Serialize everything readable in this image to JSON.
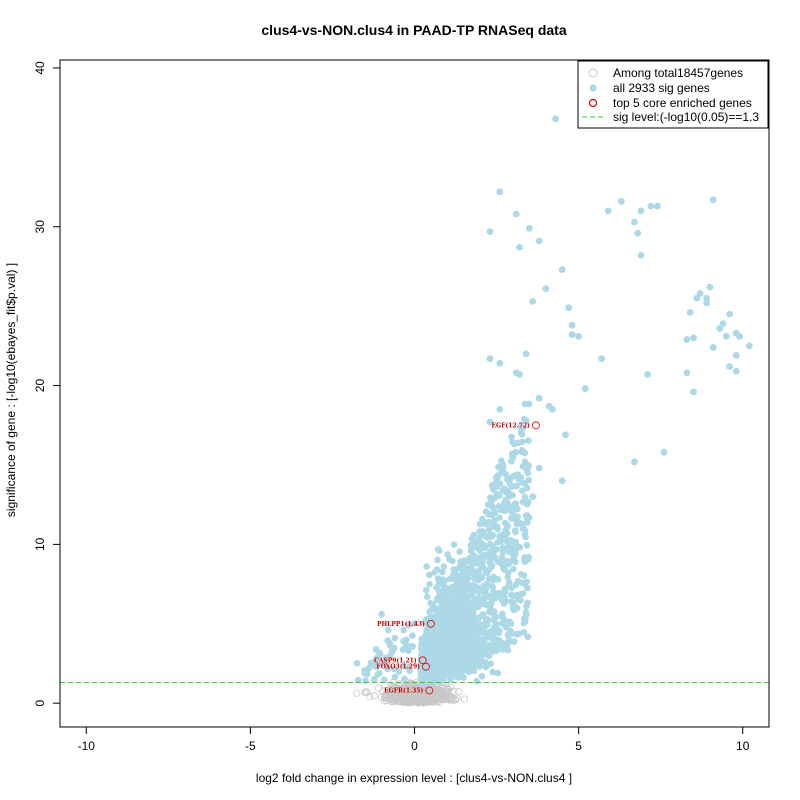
{
  "chart_data": {
    "type": "scatter",
    "title": "clus4-vs-NON.clus4 in PAAD-TP RNASeq data",
    "xlabel": "log2 fold change in expression level : [clus4-vs-NON.clus4 ]",
    "ylabel": "significance of gene : [-log10(ebayes_fit$p.val) ]",
    "xlim": [
      -10.8,
      10.8
    ],
    "ylim": [
      -1.5,
      40.5
    ],
    "x_ticks": [
      -10,
      -5,
      0,
      5,
      10
    ],
    "y_ticks": [
      0,
      10,
      20,
      30,
      40
    ],
    "x_tick_labels": [
      "-10",
      "-5",
      "0",
      "5",
      "10"
    ],
    "y_tick_labels": [
      "0",
      "10",
      "20",
      "30",
      "40"
    ],
    "sig_level": 1.3,
    "colors": {
      "background_genes": "#c8c8c8",
      "sig_genes": "#add8e6",
      "core_genes": "#e00000",
      "sig_line": "#33cc33"
    },
    "legend": {
      "placement": "top-right",
      "entries": [
        {
          "label": "Among total18457genes",
          "kind": "open-grey"
        },
        {
          "label": "all 2933 sig genes",
          "kind": "filled-blue"
        },
        {
          "label": "top 5 core enriched genes",
          "kind": "open-red"
        },
        {
          "label": "sig level:(-log10(0.05)==1.3",
          "kind": "dashed-green"
        }
      ]
    },
    "core_genes": [
      {
        "label": "EGF(12.72)",
        "x": 3.7,
        "y": 17.5
      },
      {
        "label": "PHLPP1(1.43)",
        "x": 0.5,
        "y": 5.0
      },
      {
        "label": "CASP9(1.21)",
        "x": 0.25,
        "y": 2.7
      },
      {
        "label": "FOXO3(1.29)",
        "x": 0.35,
        "y": 2.3
      },
      {
        "label": "EGFR(1.35)",
        "x": 0.45,
        "y": 0.8
      }
    ],
    "outlier_sig_genes": [
      [
        4.3,
        36.8
      ],
      [
        2.6,
        32.2
      ],
      [
        3.1,
        30.8
      ],
      [
        6.3,
        31.6
      ],
      [
        6.9,
        31.0
      ],
      [
        7.2,
        31.3
      ],
      [
        7.4,
        31.3
      ],
      [
        9.1,
        31.7
      ],
      [
        5.9,
        31.0
      ],
      [
        2.3,
        29.7
      ],
      [
        3.5,
        29.9
      ],
      [
        3.8,
        29.1
      ],
      [
        3.2,
        28.7
      ],
      [
        6.7,
        30.3
      ],
      [
        6.8,
        29.6
      ],
      [
        6.9,
        28.2
      ],
      [
        4.5,
        27.3
      ],
      [
        4.0,
        26.1
      ],
      [
        3.6,
        25.3
      ],
      [
        4.7,
        24.9
      ],
      [
        4.8,
        23.8
      ],
      [
        4.8,
        23.2
      ],
      [
        5.0,
        23.1
      ],
      [
        5.7,
        21.7
      ],
      [
        2.3,
        21.7
      ],
      [
        2.6,
        21.4
      ],
      [
        3.1,
        20.8
      ],
      [
        3.4,
        22.0
      ],
      [
        3.2,
        20.7
      ],
      [
        5.2,
        19.8
      ],
      [
        7.1,
        20.7
      ],
      [
        8.3,
        22.9
      ],
      [
        8.5,
        23.0
      ],
      [
        8.4,
        24.6
      ],
      [
        8.6,
        25.5
      ],
      [
        8.7,
        25.8
      ],
      [
        8.9,
        25.2
      ],
      [
        9.0,
        26.2
      ],
      [
        9.1,
        22.4
      ],
      [
        9.3,
        23.6
      ],
      [
        9.4,
        23.9
      ],
      [
        9.5,
        23.1
      ],
      [
        9.6,
        24.5
      ],
      [
        9.8,
        23.3
      ],
      [
        9.9,
        23.1
      ],
      [
        9.6,
        21.2
      ],
      [
        9.8,
        20.9
      ],
      [
        9.8,
        21.9
      ],
      [
        10.2,
        22.5
      ],
      [
        8.3,
        20.8
      ],
      [
        8.5,
        19.6
      ],
      [
        8.9,
        25.5
      ],
      [
        7.6,
        15.8
      ],
      [
        6.7,
        15.2
      ],
      [
        4.6,
        16.9
      ],
      [
        4.2,
        18.5
      ],
      [
        4.1,
        18.7
      ],
      [
        3.8,
        19.2
      ],
      [
        2.6,
        18.5
      ],
      [
        2.3,
        17.7
      ],
      [
        4.5,
        14.0
      ],
      [
        3.8,
        14.8
      ],
      [
        3.6,
        13.0
      ]
    ],
    "sig_cloud": {
      "description": "dense band of ~2900 significant genes with fold change 0.2 to 3.5 and significance rising with fold change",
      "x_range": [
        -1.8,
        3.6
      ],
      "y_range": [
        1.3,
        21.0
      ]
    }
  }
}
